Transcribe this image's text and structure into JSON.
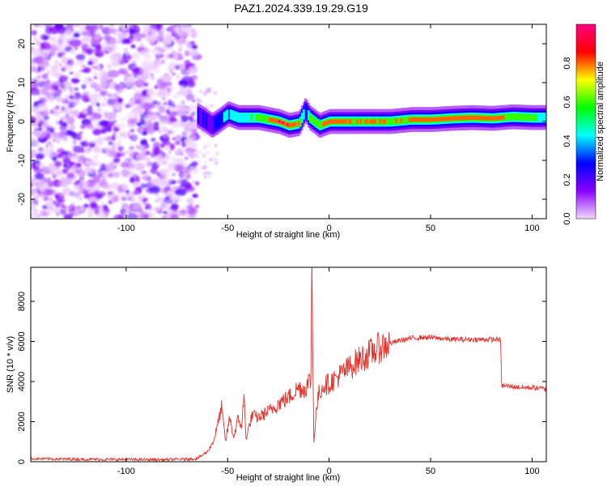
{
  "title": "PAZ1.2024.339.19.29.G19",
  "chart_data": [
    {
      "type": "heatmap",
      "xlabel": "Height of straight line (km)",
      "ylabel": "Frequency (Hz)",
      "xlim": [
        -147,
        107
      ],
      "ylim": [
        -25,
        25
      ],
      "x_ticks": [
        -100,
        -50,
        0,
        50,
        100
      ],
      "y_ticks": [
        -20,
        -10,
        0,
        10,
        20
      ],
      "colorbar": {
        "label": "Normalized spectral amplitude",
        "range": [
          0,
          1
        ],
        "ticks": [
          0.0,
          0.2,
          0.4,
          0.6,
          0.8
        ],
        "colors": [
          "#f2d9ff",
          "#8a00ff",
          "#0000ff",
          "#00ffff",
          "#00ff00",
          "#ffff00",
          "#ff0000",
          "#ff0080"
        ]
      },
      "noise_region_x": [
        -147,
        -65
      ],
      "ridge": {
        "x": [
          -65,
          -62,
          -58,
          -55,
          -50,
          -45,
          -40,
          -35,
          -30,
          -25,
          -20,
          -15,
          -12,
          -10,
          -5,
          0,
          10,
          20,
          30,
          40,
          50,
          60,
          70,
          80,
          90,
          100,
          107
        ],
        "frequency": [
          1.5,
          0.5,
          -1.0,
          0.0,
          2.0,
          1.0,
          1.0,
          1.0,
          0.5,
          0.0,
          -1.0,
          -0.5,
          3.0,
          1.0,
          -1.0,
          0.0,
          0.0,
          0.0,
          0.0,
          0.5,
          0.5,
          0.8,
          1.0,
          0.8,
          1.2,
          1.0,
          1.0
        ],
        "amplitude": [
          0.2,
          0.25,
          0.2,
          0.3,
          0.4,
          0.45,
          0.5,
          0.6,
          0.75,
          0.95,
          0.95,
          0.7,
          0.3,
          0.5,
          0.7,
          0.9,
          0.7,
          0.8,
          0.7,
          0.75,
          0.85,
          0.9,
          0.9,
          0.85,
          0.7,
          0.55,
          0.5
        ]
      }
    },
    {
      "type": "line",
      "xlabel": "Height of straight line (km)",
      "ylabel": "SNR (10 * v/v)",
      "xlim": [
        -147,
        107
      ],
      "ylim": [
        0,
        9700
      ],
      "x_ticks": [
        -100,
        -50,
        0,
        50,
        100
      ],
      "y_ticks": [
        0,
        2000,
        4000,
        6000,
        8000
      ],
      "color": "#e8302a",
      "series": [
        {
          "x": [
            -147,
            -120,
            -100,
            -80,
            -65,
            -60,
            -57,
            -55,
            -53,
            -51,
            -49,
            -47,
            -45,
            -43,
            -42,
            -41,
            -40,
            -38,
            -35,
            -30,
            -25,
            -20,
            -15,
            -12,
            -10,
            -9,
            -8.5,
            -8,
            -7.5,
            -7,
            -6,
            -5,
            -3,
            0,
            5,
            10,
            15,
            20,
            25,
            30,
            35,
            40,
            45,
            50,
            55,
            60,
            65,
            70,
            75,
            80,
            84,
            84.5,
            85,
            90,
            95,
            100,
            105,
            107
          ],
          "y": [
            150,
            120,
            110,
            100,
            150,
            500,
            1000,
            1800,
            2700,
            1000,
            2200,
            1200,
            2100,
            1800,
            3300,
            1200,
            1500,
            2300,
            2200,
            2500,
            2900,
            3200,
            3700,
            3600,
            4000,
            4100,
            9600,
            5000,
            1100,
            1600,
            2800,
            3400,
            3800,
            3900,
            4300,
            4700,
            5100,
            5400,
            5700,
            5900,
            6050,
            6150,
            6200,
            6200,
            6150,
            6100,
            6100,
            6100,
            6100,
            6100,
            6100,
            6000,
            3800,
            3750,
            3700,
            3700,
            3650,
            3600
          ]
        }
      ]
    }
  ]
}
